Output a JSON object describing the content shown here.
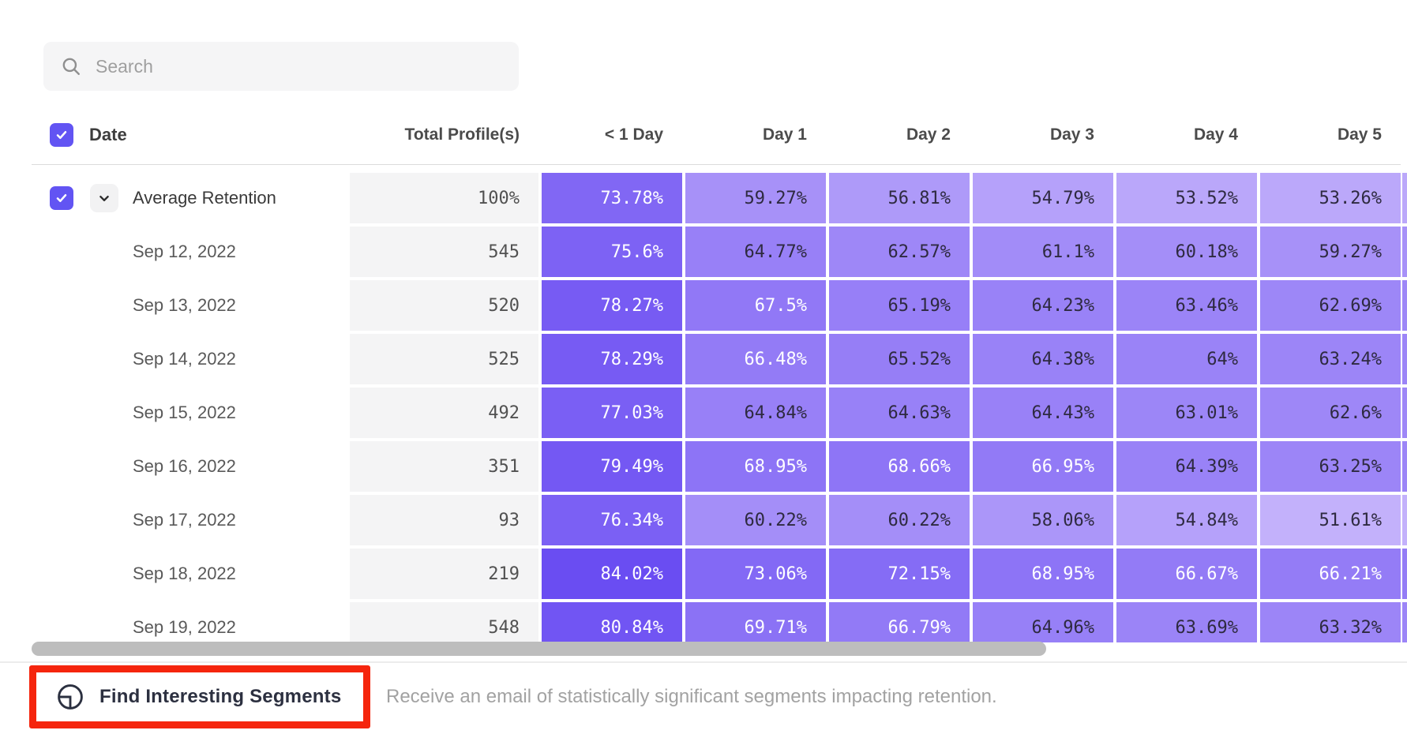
{
  "ui": {
    "search": {
      "placeholder": "Search"
    },
    "header": {
      "date_label": "Date",
      "columns": [
        "Total Profile(s)",
        "< 1 Day",
        "Day 1",
        "Day 2",
        "Day 3",
        "Day 4",
        "Day 5"
      ]
    },
    "footer": {
      "button_label": "Find Interesting Segments",
      "description": "Receive an email of statistically significant segments impacting retention."
    },
    "colors": {
      "accent": "#6254f3",
      "annotation": "#f5250d",
      "totals_cell_bg": "#f4f4f5",
      "scroll_thumb": "#bdbdbd"
    }
  },
  "chart_data": {
    "type": "heatmap",
    "columns": [
      "< 1 Day",
      "Day 1",
      "Day 2",
      "Day 3",
      "Day 4",
      "Day 5"
    ],
    "rows": [
      {
        "label": "Average Retention",
        "kind": "average",
        "total": "100%",
        "values": [
          73.78,
          59.27,
          56.81,
          54.79,
          53.52,
          53.26
        ]
      },
      {
        "label": "Sep 12, 2022",
        "kind": "date",
        "total": "545",
        "values": [
          75.6,
          64.77,
          62.57,
          61.1,
          60.18,
          59.27
        ]
      },
      {
        "label": "Sep 13, 2022",
        "kind": "date",
        "total": "520",
        "values": [
          78.27,
          67.5,
          65.19,
          64.23,
          63.46,
          62.69
        ]
      },
      {
        "label": "Sep 14, 2022",
        "kind": "date",
        "total": "525",
        "values": [
          78.29,
          66.48,
          65.52,
          64.38,
          64,
          63.24
        ]
      },
      {
        "label": "Sep 15, 2022",
        "kind": "date",
        "total": "492",
        "values": [
          77.03,
          64.84,
          64.63,
          64.43,
          63.01,
          62.6
        ]
      },
      {
        "label": "Sep 16, 2022",
        "kind": "date",
        "total": "351",
        "values": [
          79.49,
          68.95,
          68.66,
          66.95,
          64.39,
          63.25
        ]
      },
      {
        "label": "Sep 17, 2022",
        "kind": "date",
        "total": "93",
        "values": [
          76.34,
          60.22,
          60.22,
          58.06,
          54.84,
          51.61
        ]
      },
      {
        "label": "Sep 18, 2022",
        "kind": "date",
        "total": "219",
        "values": [
          84.02,
          73.06,
          72.15,
          68.95,
          66.67,
          66.21
        ]
      },
      {
        "label": "Sep 19, 2022",
        "kind": "date",
        "total": "548",
        "values": [
          80.84,
          69.71,
          66.79,
          64.96,
          63.69,
          63.32
        ]
      }
    ],
    "color_scale": {
      "min": 51.61,
      "max": 84.02,
      "light": "#c3b1fb",
      "dark": "#6a4df2",
      "white_text_threshold": 66,
      "dark_text_color": "#2e2a40"
    }
  }
}
